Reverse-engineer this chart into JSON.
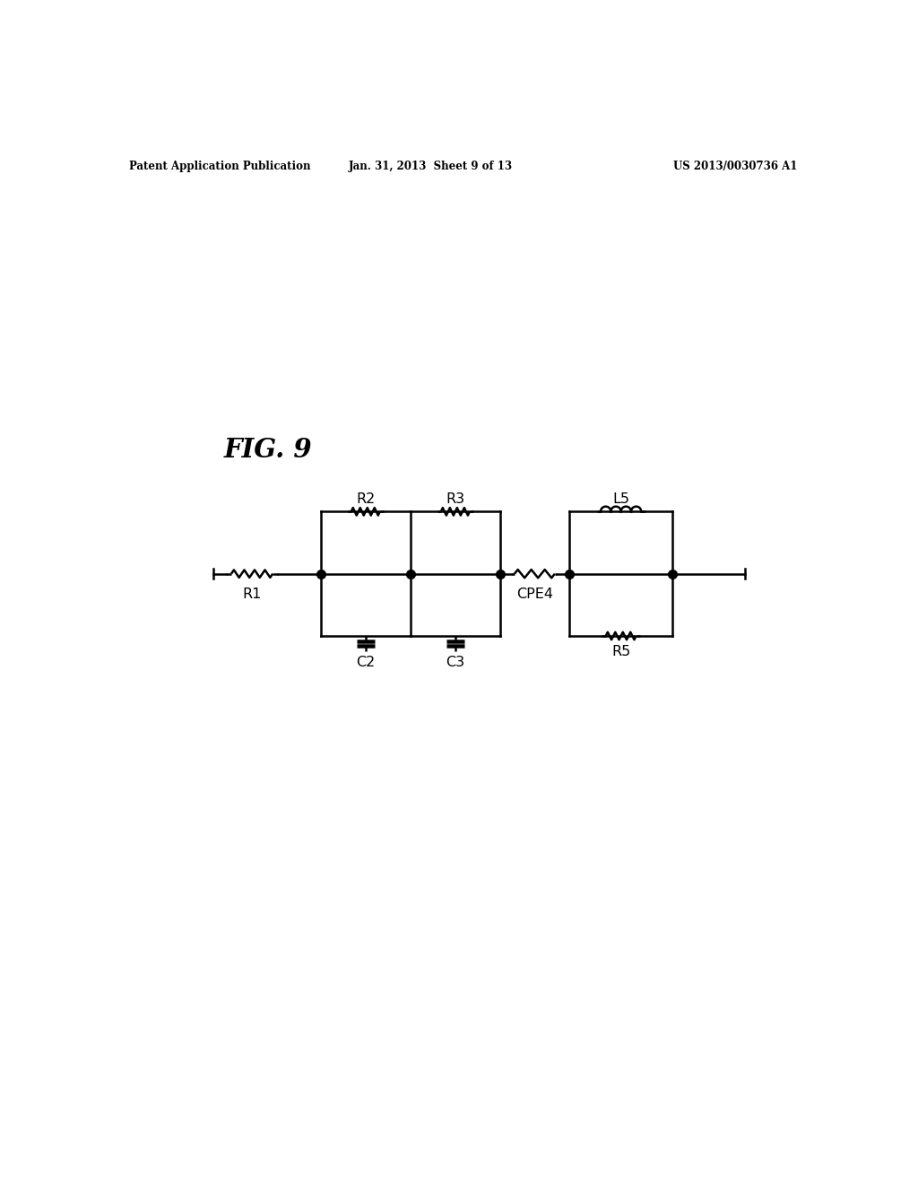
{
  "title_left": "Patent Application Publication",
  "title_mid": "Jan. 31, 2013  Sheet 9 of 13",
  "title_right": "US 2013/0030736 A1",
  "fig_label": "FIG. 9",
  "bg_color": "#ffffff",
  "line_color": "#000000",
  "line_width": 1.8
}
